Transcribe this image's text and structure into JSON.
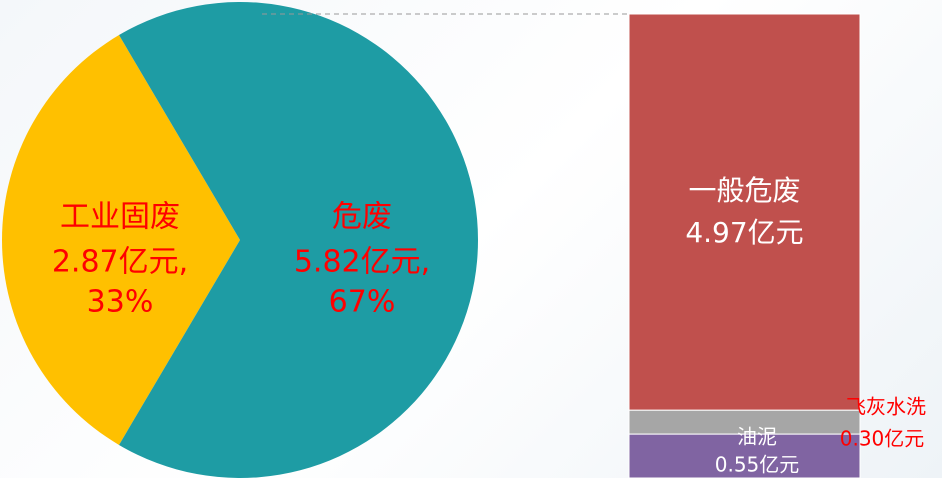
{
  "chart_data": {
    "type": "pie_bar",
    "pie": {
      "categories": [
        "工业固废",
        "危废"
      ],
      "values": [
        2.87,
        5.82
      ],
      "value_labels": [
        "2.87亿元,",
        "5.82亿元,"
      ],
      "percent_labels": [
        "33%",
        "67%"
      ],
      "colors": [
        "#ffc000",
        "#1e9ca4"
      ]
    },
    "bar": {
      "categories": [
        "一般危废",
        "飞灰水洗",
        "油泥"
      ],
      "values": [
        4.97,
        0.3,
        0.55
      ],
      "value_labels": [
        "4.97亿元",
        "0.30亿元",
        "0.55亿元"
      ],
      "colors": [
        "#c0504d",
        "#a6a6a6",
        "#8064a2"
      ]
    }
  }
}
